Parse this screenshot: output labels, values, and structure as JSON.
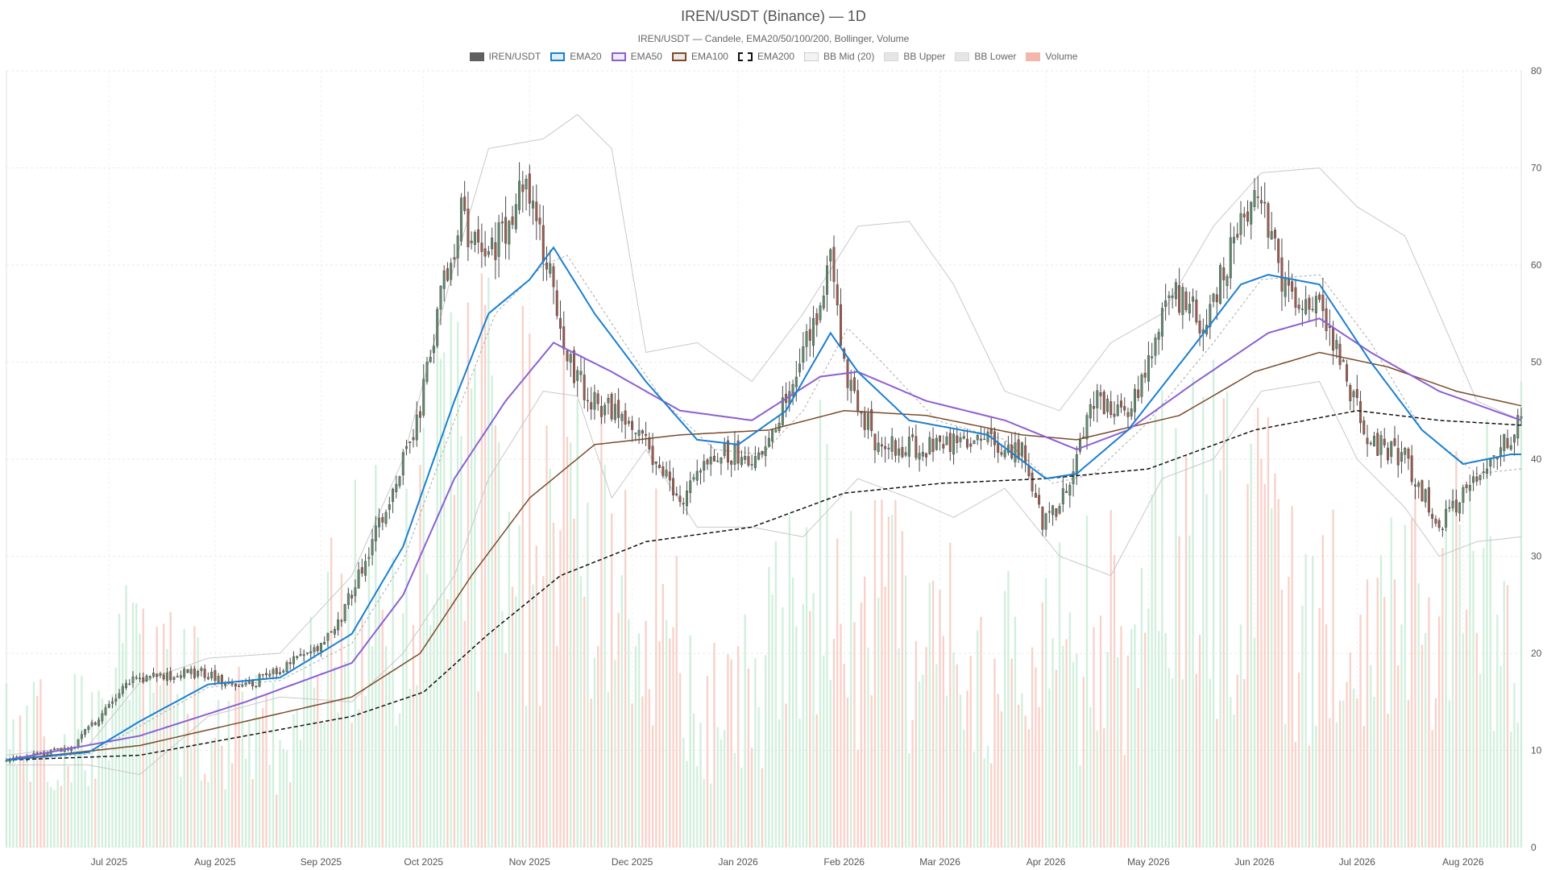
{
  "chart_data": {
    "type": "candlestick",
    "title": "IREN/USDT (Binance) — 1D",
    "subtitle": "IREN/USDT — Candele, EMA20/50/100/200, Bollinger, Volume",
    "legend": [
      {
        "key": "candles",
        "label": "IREN/USDT",
        "color": "#5f5f5f",
        "style": "fill"
      },
      {
        "key": "ema20",
        "label": "EMA20",
        "color": "#1a7fd1",
        "style": "line"
      },
      {
        "key": "ema50",
        "label": "EMA50",
        "color": "#8d5fd3",
        "style": "line"
      },
      {
        "key": "ema100",
        "label": "EMA100",
        "color": "#7a4a2a",
        "style": "line"
      },
      {
        "key": "ema200",
        "label": "EMA200",
        "color": "#111111",
        "style": "dashed"
      },
      {
        "key": "bbmid",
        "label": "BB Mid (20)",
        "color": "#aaaaaa",
        "style": "dotted"
      },
      {
        "key": "bbupper",
        "label": "BB Upper",
        "color": "#c8c8c8",
        "style": "line"
      },
      {
        "key": "bblower",
        "label": "BB Lower",
        "color": "#c8c8c8",
        "style": "line"
      },
      {
        "key": "volume",
        "label": "Volume",
        "color": "#f4b6aa",
        "style": "fill"
      }
    ],
    "legend_position": "top-center",
    "y_axis": {
      "position": "right",
      "min": 0,
      "max": 80,
      "ticks": [
        0,
        10,
        20,
        30,
        40,
        50,
        60,
        70,
        80
      ]
    },
    "x_axis": {
      "type": "date",
      "start": "2025-06-01",
      "end": "2026-08-18",
      "ticks": [
        {
          "date": "2025-07-01",
          "label": "Jul 2025"
        },
        {
          "date": "2025-08-01",
          "label": "Aug 2025"
        },
        {
          "date": "2025-09-01",
          "label": "Sep 2025"
        },
        {
          "date": "2025-10-01",
          "label": "Oct 2025"
        },
        {
          "date": "2025-11-01",
          "label": "Nov 2025"
        },
        {
          "date": "2025-12-01",
          "label": "Dec 2025"
        },
        {
          "date": "2026-01-01",
          "label": "Jan 2026"
        },
        {
          "date": "2026-02-01",
          "label": "Feb 2026"
        },
        {
          "date": "2026-03-01",
          "label": "Mar 2026"
        },
        {
          "date": "2026-04-01",
          "label": "Apr 2026"
        },
        {
          "date": "2026-05-01",
          "label": "May 2026"
        },
        {
          "date": "2026-06-01",
          "label": "Jun 2026"
        },
        {
          "date": "2026-07-01",
          "label": "Jul 2026"
        },
        {
          "date": "2026-08-01",
          "label": "Aug 2026"
        }
      ]
    },
    "grid": true,
    "colors": {
      "up": "#5e8a6a",
      "down": "#9c5a4c",
      "volume_up": "#c9ecd6",
      "volume_down": "#f7c9c0"
    },
    "close_path": [
      [
        "2025-06-01",
        9.0
      ],
      [
        "2025-06-20",
        10.2
      ],
      [
        "2025-07-08",
        17.5
      ],
      [
        "2025-07-28",
        18.0
      ],
      [
        "2025-08-10",
        16.5
      ],
      [
        "2025-08-25",
        19.5
      ],
      [
        "2025-09-05",
        22.0
      ],
      [
        "2025-09-15",
        30.5
      ],
      [
        "2025-09-22",
        37.0
      ],
      [
        "2025-09-30",
        45.0
      ],
      [
        "2025-10-06",
        57.0
      ],
      [
        "2025-10-12",
        65.0
      ],
      [
        "2025-10-18",
        60.0
      ],
      [
        "2025-10-25",
        64.0
      ],
      [
        "2025-10-31",
        70.0
      ],
      [
        "2025-11-05",
        62.0
      ],
      [
        "2025-11-12",
        50.0
      ],
      [
        "2025-11-20",
        46.0
      ],
      [
        "2025-11-28",
        44.0
      ],
      [
        "2025-12-08",
        40.0
      ],
      [
        "2025-12-15",
        35.0
      ],
      [
        "2025-12-25",
        41.0
      ],
      [
        "2026-01-05",
        40.0
      ],
      [
        "2026-01-12",
        44.0
      ],
      [
        "2026-01-20",
        51.0
      ],
      [
        "2026-01-28",
        60.0
      ],
      [
        "2026-02-02",
        48.0
      ],
      [
        "2026-02-10",
        42.0
      ],
      [
        "2026-02-25",
        41.0
      ],
      [
        "2026-03-10",
        42.0
      ],
      [
        "2026-03-25",
        41.0
      ],
      [
        "2026-03-31",
        33.0
      ],
      [
        "2026-04-06",
        36.0
      ],
      [
        "2026-04-15",
        46.0
      ],
      [
        "2026-04-25",
        44.0
      ],
      [
        "2026-05-08",
        57.0
      ],
      [
        "2026-05-18",
        54.0
      ],
      [
        "2026-05-28",
        65.0
      ],
      [
        "2026-06-03",
        67.0
      ],
      [
        "2026-06-10",
        57.0
      ],
      [
        "2026-06-20",
        57.0
      ],
      [
        "2026-06-28",
        48.0
      ],
      [
        "2026-07-05",
        42.0
      ],
      [
        "2026-07-15",
        40.0
      ],
      [
        "2026-07-25",
        33.0
      ],
      [
        "2026-08-05",
        38.0
      ],
      [
        "2026-08-18",
        44.0
      ]
    ],
    "ema20": [
      [
        "2025-06-01",
        9.0
      ],
      [
        "2025-06-25",
        9.8
      ],
      [
        "2025-07-10",
        13.0
      ],
      [
        "2025-07-30",
        16.8
      ],
      [
        "2025-08-20",
        17.5
      ],
      [
        "2025-09-10",
        22.0
      ],
      [
        "2025-09-25",
        31.0
      ],
      [
        "2025-10-10",
        46.0
      ],
      [
        "2025-10-20",
        55.0
      ],
      [
        "2025-11-01",
        58.5
      ],
      [
        "2025-11-08",
        61.8
      ],
      [
        "2025-11-20",
        55.0
      ],
      [
        "2025-12-05",
        48.0
      ],
      [
        "2025-12-20",
        42.0
      ],
      [
        "2026-01-01",
        41.5
      ],
      [
        "2026-01-15",
        45.0
      ],
      [
        "2026-01-28",
        53.0
      ],
      [
        "2026-02-05",
        49.0
      ],
      [
        "2026-02-20",
        44.0
      ],
      [
        "2026-03-15",
        42.5
      ],
      [
        "2026-04-01",
        38.0
      ],
      [
        "2026-04-10",
        38.5
      ],
      [
        "2026-04-25",
        43.0
      ],
      [
        "2026-05-15",
        52.0
      ],
      [
        "2026-05-28",
        58.0
      ],
      [
        "2026-06-05",
        59.0
      ],
      [
        "2026-06-20",
        58.0
      ],
      [
        "2026-07-05",
        50.0
      ],
      [
        "2026-07-20",
        43.0
      ],
      [
        "2026-08-01",
        39.5
      ],
      [
        "2026-08-15",
        40.5
      ]
    ],
    "ema50": [
      [
        "2025-06-01",
        9.0
      ],
      [
        "2025-07-10",
        11.5
      ],
      [
        "2025-08-10",
        15.0
      ],
      [
        "2025-09-10",
        19.0
      ],
      [
        "2025-09-25",
        26.0
      ],
      [
        "2025-10-10",
        38.0
      ],
      [
        "2025-10-25",
        46.0
      ],
      [
        "2025-11-08",
        52.0
      ],
      [
        "2025-11-25",
        49.0
      ],
      [
        "2025-12-15",
        45.0
      ],
      [
        "2026-01-05",
        44.0
      ],
      [
        "2026-01-25",
        48.5
      ],
      [
        "2026-02-05",
        49.0
      ],
      [
        "2026-02-25",
        46.0
      ],
      [
        "2026-03-20",
        44.0
      ],
      [
        "2026-04-10",
        41.0
      ],
      [
        "2026-04-25",
        43.0
      ],
      [
        "2026-05-15",
        48.0
      ],
      [
        "2026-06-05",
        53.0
      ],
      [
        "2026-06-20",
        54.5
      ],
      [
        "2026-07-05",
        51.0
      ],
      [
        "2026-07-25",
        47.0
      ],
      [
        "2026-08-18",
        44.0
      ]
    ],
    "ema100": [
      [
        "2025-06-01",
        9.0
      ],
      [
        "2025-07-10",
        10.5
      ],
      [
        "2025-08-10",
        13.0
      ],
      [
        "2025-09-10",
        15.5
      ],
      [
        "2025-09-30",
        20.0
      ],
      [
        "2025-10-15",
        28.0
      ],
      [
        "2025-11-01",
        36.0
      ],
      [
        "2025-11-20",
        41.5
      ],
      [
        "2025-12-15",
        42.5
      ],
      [
        "2026-01-10",
        43.0
      ],
      [
        "2026-02-01",
        45.0
      ],
      [
        "2026-02-25",
        44.5
      ],
      [
        "2026-03-25",
        42.5
      ],
      [
        "2026-04-10",
        42.0
      ],
      [
        "2026-05-10",
        44.5
      ],
      [
        "2026-06-01",
        49.0
      ],
      [
        "2026-06-20",
        51.0
      ],
      [
        "2026-07-10",
        49.5
      ],
      [
        "2026-07-30",
        47.0
      ],
      [
        "2026-08-18",
        45.5
      ]
    ],
    "ema200": [
      [
        "2025-06-01",
        9.0
      ],
      [
        "2025-07-10",
        9.5
      ],
      [
        "2025-08-10",
        11.5
      ],
      [
        "2025-09-10",
        13.5
      ],
      [
        "2025-10-01",
        16.0
      ],
      [
        "2025-10-20",
        22.0
      ],
      [
        "2025-11-10",
        28.0
      ],
      [
        "2025-12-05",
        31.5
      ],
      [
        "2026-01-05",
        33.0
      ],
      [
        "2026-02-01",
        36.5
      ],
      [
        "2026-03-01",
        37.5
      ],
      [
        "2026-04-01",
        38.0
      ],
      [
        "2026-05-01",
        39.0
      ],
      [
        "2026-06-01",
        43.0
      ],
      [
        "2026-07-01",
        45.0
      ],
      [
        "2026-07-25",
        44.0
      ],
      [
        "2026-08-18",
        43.5
      ]
    ],
    "bb_mid": [
      [
        "2025-06-01",
        9.0
      ],
      [
        "2025-06-25",
        9.6
      ],
      [
        "2025-07-10",
        12.5
      ],
      [
        "2025-07-30",
        16.5
      ],
      [
        "2025-08-20",
        17.2
      ],
      [
        "2025-09-10",
        21.0
      ],
      [
        "2025-09-25",
        29.5
      ],
      [
        "2025-10-10",
        44.0
      ],
      [
        "2025-10-22",
        55.0
      ],
      [
        "2025-11-05",
        60.0
      ],
      [
        "2025-11-12",
        61.0
      ],
      [
        "2025-11-25",
        54.0
      ],
      [
        "2025-12-10",
        46.0
      ],
      [
        "2025-12-25",
        41.0
      ],
      [
        "2026-01-08",
        40.5
      ],
      [
        "2026-01-20",
        45.0
      ],
      [
        "2026-02-02",
        53.5
      ],
      [
        "2026-02-12",
        50.0
      ],
      [
        "2026-02-28",
        44.0
      ],
      [
        "2026-03-20",
        42.0
      ],
      [
        "2026-04-03",
        37.5
      ],
      [
        "2026-04-15",
        38.5
      ],
      [
        "2026-04-30",
        43.5
      ],
      [
        "2026-05-20",
        52.0
      ],
      [
        "2026-06-03",
        58.5
      ],
      [
        "2026-06-20",
        59.0
      ],
      [
        "2026-07-05",
        52.0
      ],
      [
        "2026-07-20",
        43.0
      ],
      [
        "2026-08-05",
        38.5
      ],
      [
        "2026-08-18",
        39.0
      ]
    ],
    "bb_upper": [
      [
        "2025-06-01",
        9.5
      ],
      [
        "2025-06-25",
        10.5
      ],
      [
        "2025-07-10",
        17.0
      ],
      [
        "2025-07-30",
        19.5
      ],
      [
        "2025-08-20",
        20.0
      ],
      [
        "2025-09-10",
        28.0
      ],
      [
        "2025-09-25",
        40.0
      ],
      [
        "2025-10-10",
        60.0
      ],
      [
        "2025-10-20",
        72.0
      ],
      [
        "2025-11-05",
        73.0
      ],
      [
        "2025-11-15",
        75.5
      ],
      [
        "2025-11-25",
        72.0
      ],
      [
        "2025-12-05",
        51.0
      ],
      [
        "2025-12-20",
        52.0
      ],
      [
        "2026-01-05",
        48.0
      ],
      [
        "2026-01-20",
        55.0
      ],
      [
        "2026-02-05",
        64.0
      ],
      [
        "2026-02-20",
        64.5
      ],
      [
        "2026-03-05",
        58.0
      ],
      [
        "2026-03-20",
        47.0
      ],
      [
        "2026-04-05",
        45.0
      ],
      [
        "2026-04-20",
        52.0
      ],
      [
        "2026-05-05",
        55.0
      ],
      [
        "2026-05-20",
        64.0
      ],
      [
        "2026-06-03",
        69.5
      ],
      [
        "2026-06-20",
        70.0
      ],
      [
        "2026-07-01",
        66.0
      ],
      [
        "2026-07-15",
        63.0
      ],
      [
        "2026-07-25",
        55.0
      ],
      [
        "2026-08-05",
        46.0
      ],
      [
        "2026-08-18",
        44.0
      ]
    ],
    "bb_lower": [
      [
        "2025-06-01",
        8.5
      ],
      [
        "2025-06-25",
        8.5
      ],
      [
        "2025-07-10",
        7.5
      ],
      [
        "2025-07-30",
        13.5
      ],
      [
        "2025-08-20",
        15.5
      ],
      [
        "2025-09-10",
        15.0
      ],
      [
        "2025-09-25",
        20.0
      ],
      [
        "2025-10-10",
        28.0
      ],
      [
        "2025-10-20",
        38.0
      ],
      [
        "2025-11-05",
        47.0
      ],
      [
        "2025-11-15",
        46.5
      ],
      [
        "2025-11-25",
        36.0
      ],
      [
        "2025-12-05",
        41.0
      ],
      [
        "2025-12-20",
        33.0
      ],
      [
        "2026-01-05",
        33.0
      ],
      [
        "2026-01-20",
        32.0
      ],
      [
        "2026-02-05",
        38.0
      ],
      [
        "2026-02-20",
        36.0
      ],
      [
        "2026-03-05",
        34.0
      ],
      [
        "2026-03-20",
        37.0
      ],
      [
        "2026-04-05",
        30.0
      ],
      [
        "2026-04-20",
        28.0
      ],
      [
        "2026-05-05",
        38.0
      ],
      [
        "2026-05-20",
        40.0
      ],
      [
        "2026-06-03",
        47.0
      ],
      [
        "2026-06-20",
        48.0
      ],
      [
        "2026-07-01",
        40.0
      ],
      [
        "2026-07-15",
        35.0
      ],
      [
        "2026-07-25",
        30.0
      ],
      [
        "2026-08-05",
        31.5
      ],
      [
        "2026-08-18",
        32.0
      ]
    ],
    "volume_profile": [
      [
        "2025-06-01",
        12
      ],
      [
        "2025-06-20",
        14
      ],
      [
        "2025-07-10",
        22
      ],
      [
        "2025-08-01",
        16
      ],
      [
        "2025-08-20",
        14
      ],
      [
        "2025-09-10",
        26
      ],
      [
        "2025-09-25",
        34
      ],
      [
        "2025-10-10",
        42
      ],
      [
        "2025-10-25",
        40
      ],
      [
        "2025-11-10",
        38
      ],
      [
        "2025-11-25",
        30
      ],
      [
        "2025-12-10",
        26
      ],
      [
        "2025-12-25",
        16
      ],
      [
        "2026-01-10",
        24
      ],
      [
        "2026-01-25",
        32
      ],
      [
        "2026-02-10",
        26
      ],
      [
        "2026-03-01",
        22
      ],
      [
        "2026-03-20",
        20
      ],
      [
        "2026-04-05",
        22
      ],
      [
        "2026-04-25",
        26
      ],
      [
        "2026-05-10",
        36
      ],
      [
        "2026-05-25",
        34
      ],
      [
        "2026-06-10",
        30
      ],
      [
        "2026-06-25",
        26
      ],
      [
        "2026-07-10",
        24
      ],
      [
        "2026-07-25",
        30
      ],
      [
        "2026-08-10",
        32
      ],
      [
        "2026-08-18",
        34
      ]
    ]
  }
}
